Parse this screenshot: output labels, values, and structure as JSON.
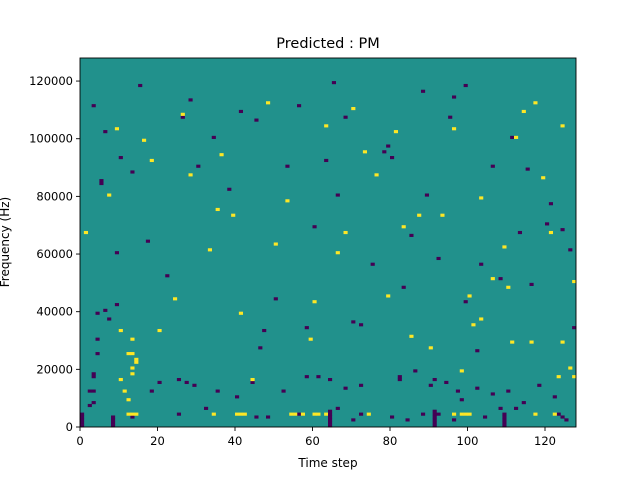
{
  "chart_data": {
    "type": "heatmap",
    "title": "Predicted : PM",
    "xlabel": "Time step",
    "ylabel": "Frequency (Hz)",
    "xlim": [
      0,
      128
    ],
    "ylim": [
      0,
      128000
    ],
    "x_ticks": [
      "0",
      "20",
      "40",
      "60",
      "80",
      "100",
      "120"
    ],
    "y_ticks": [
      "0",
      "20000",
      "40000",
      "60000",
      "80000",
      "100000",
      "120000"
    ],
    "grid": false,
    "n_time_steps": 128,
    "n_freq_bins": 128,
    "colormap": {
      "low": "#440154",
      "mid": "#21918c",
      "high": "#fde725"
    },
    "background_value": 0,
    "note_values": "-1 = low (dark purple), 0 = background (teal), 1 = high (yellow)",
    "low_cells": [
      [
        2,
        7
      ],
      [
        3,
        18
      ],
      [
        3,
        17
      ],
      [
        4,
        30
      ],
      [
        4,
        25
      ],
      [
        3,
        111
      ],
      [
        5,
        85
      ],
      [
        5,
        84
      ],
      [
        9,
        60
      ],
      [
        6,
        102
      ],
      [
        10,
        93
      ],
      [
        3,
        8
      ],
      [
        13,
        88
      ],
      [
        15,
        118
      ],
      [
        17,
        64
      ],
      [
        22,
        52
      ],
      [
        26,
        107
      ],
      [
        28,
        113
      ],
      [
        30,
        90
      ],
      [
        34,
        100
      ],
      [
        38,
        82
      ],
      [
        41,
        109
      ],
      [
        45,
        106
      ],
      [
        46,
        27
      ],
      [
        47,
        33
      ],
      [
        50,
        44
      ],
      [
        53,
        90
      ],
      [
        56,
        111
      ],
      [
        58,
        34
      ],
      [
        60,
        69
      ],
      [
        61,
        17
      ],
      [
        63,
        92
      ],
      [
        65,
        119
      ],
      [
        66,
        80
      ],
      [
        68,
        107
      ],
      [
        70,
        36
      ],
      [
        72,
        35
      ],
      [
        75,
        56
      ],
      [
        78,
        95
      ],
      [
        79,
        97
      ],
      [
        80,
        93
      ],
      [
        82,
        17
      ],
      [
        83,
        48
      ],
      [
        85,
        66
      ],
      [
        88,
        116
      ],
      [
        89,
        80
      ],
      [
        91,
        16
      ],
      [
        92,
        58
      ],
      [
        95,
        107
      ],
      [
        96,
        114
      ],
      [
        97,
        12
      ],
      [
        99,
        118
      ],
      [
        99,
        43
      ],
      [
        102,
        26
      ],
      [
        103,
        56
      ],
      [
        106,
        90
      ],
      [
        108,
        51
      ],
      [
        111,
        100
      ],
      [
        113,
        67
      ],
      [
        115,
        89
      ],
      [
        116,
        49
      ],
      [
        120,
        70
      ],
      [
        121,
        77
      ],
      [
        124,
        68
      ],
      [
        126,
        61
      ],
      [
        127,
        34
      ],
      [
        125,
        2
      ],
      [
        124,
        3
      ],
      [
        123,
        4
      ],
      [
        13,
        3
      ],
      [
        14,
        4
      ],
      [
        25,
        4
      ],
      [
        32,
        6
      ],
      [
        45,
        3
      ],
      [
        48,
        3
      ],
      [
        56,
        4
      ],
      [
        60,
        4
      ],
      [
        66,
        6
      ],
      [
        70,
        2
      ],
      [
        72,
        4
      ],
      [
        80,
        3
      ],
      [
        84,
        2
      ],
      [
        88,
        4
      ],
      [
        92,
        4
      ],
      [
        96,
        2
      ],
      [
        104,
        3
      ],
      [
        108,
        6
      ],
      [
        112,
        6
      ],
      [
        6,
        40
      ],
      [
        7,
        37
      ],
      [
        4,
        39
      ],
      [
        9,
        42
      ],
      [
        3,
        12
      ],
      [
        2,
        12
      ],
      [
        18,
        12
      ],
      [
        20,
        15
      ],
      [
        25,
        16
      ],
      [
        27,
        15
      ],
      [
        29,
        14
      ],
      [
        35,
        12
      ],
      [
        40,
        10
      ],
      [
        44,
        15
      ],
      [
        52,
        12
      ],
      [
        58,
        17
      ],
      [
        64,
        16
      ],
      [
        68,
        13
      ],
      [
        72,
        14
      ],
      [
        82,
        16
      ],
      [
        86,
        19
      ],
      [
        90,
        14
      ],
      [
        94,
        15
      ],
      [
        98,
        9
      ],
      [
        102,
        13
      ],
      [
        106,
        11
      ],
      [
        110,
        12
      ],
      [
        114,
        8
      ],
      [
        118,
        14
      ],
      [
        122,
        10
      ]
    ],
    "high_cells": [
      [
        1,
        67
      ],
      [
        7,
        80
      ],
      [
        9,
        103
      ],
      [
        10,
        33
      ],
      [
        13,
        25
      ],
      [
        13,
        30
      ],
      [
        12,
        9
      ],
      [
        14,
        23
      ],
      [
        16,
        99
      ],
      [
        18,
        92
      ],
      [
        20,
        33
      ],
      [
        24,
        44
      ],
      [
        26,
        108
      ],
      [
        28,
        87
      ],
      [
        33,
        61
      ],
      [
        35,
        75
      ],
      [
        36,
        94
      ],
      [
        39,
        73
      ],
      [
        41,
        39
      ],
      [
        44,
        16
      ],
      [
        48,
        112
      ],
      [
        50,
        63
      ],
      [
        53,
        78
      ],
      [
        59,
        30
      ],
      [
        60,
        43
      ],
      [
        63,
        104
      ],
      [
        66,
        60
      ],
      [
        68,
        67
      ],
      [
        70,
        110
      ],
      [
        73,
        95
      ],
      [
        76,
        87
      ],
      [
        79,
        45
      ],
      [
        81,
        102
      ],
      [
        83,
        69
      ],
      [
        85,
        31
      ],
      [
        87,
        73
      ],
      [
        90,
        27
      ],
      [
        93,
        73
      ],
      [
        96,
        103
      ],
      [
        98,
        19
      ],
      [
        100,
        45
      ],
      [
        103,
        79
      ],
      [
        106,
        51
      ],
      [
        109,
        62
      ],
      [
        111,
        29
      ],
      [
        112,
        100
      ],
      [
        114,
        109
      ],
      [
        117,
        112
      ],
      [
        119,
        86
      ],
      [
        121,
        67
      ],
      [
        124,
        104
      ],
      [
        127,
        50
      ],
      [
        10,
        16
      ],
      [
        11,
        12
      ],
      [
        12,
        9
      ],
      [
        13,
        18
      ],
      [
        13,
        20
      ],
      [
        12,
        25
      ],
      [
        14,
        22
      ],
      [
        12,
        4
      ],
      [
        13,
        4
      ],
      [
        14,
        4
      ],
      [
        34,
        4
      ],
      [
        40,
        4
      ],
      [
        41,
        4
      ],
      [
        42,
        4
      ],
      [
        54,
        4
      ],
      [
        55,
        4
      ],
      [
        57,
        4
      ],
      [
        60,
        4
      ],
      [
        61,
        4
      ],
      [
        63,
        4
      ],
      [
        74,
        4
      ],
      [
        96,
        4
      ],
      [
        98,
        4
      ],
      [
        99,
        4
      ],
      [
        100,
        4
      ],
      [
        117,
        4
      ],
      [
        122,
        4
      ],
      [
        127,
        17
      ],
      [
        126,
        20
      ],
      [
        123,
        17
      ],
      [
        101,
        35
      ],
      [
        103,
        37
      ],
      [
        110,
        48
      ],
      [
        116,
        29
      ],
      [
        124,
        29
      ]
    ],
    "column_overrides": [
      {
        "t": 0,
        "from": 0,
        "to": 4
      },
      {
        "t": 8,
        "from": 0,
        "to": 3
      },
      {
        "t": 64,
        "from": 0,
        "to": 5
      },
      {
        "t": 91,
        "from": 0,
        "to": 5
      },
      {
        "t": 109,
        "from": 0,
        "to": 4
      }
    ]
  }
}
